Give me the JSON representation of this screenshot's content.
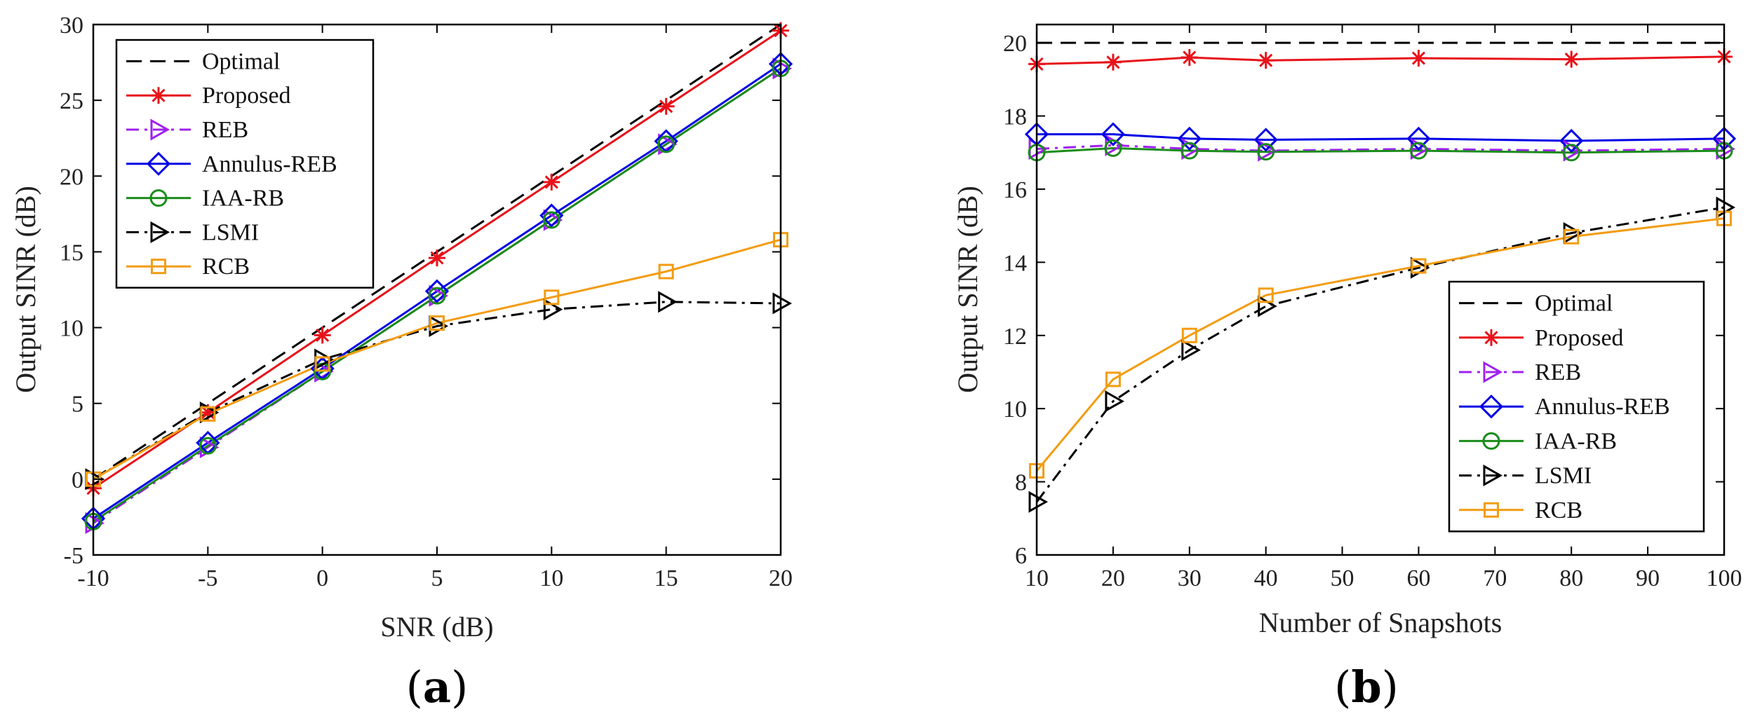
{
  "colors": {
    "Optimal": "#000000",
    "Proposed": "#e8121a",
    "REB": "#a020f0",
    "Annulus-REB": "#0000e6",
    "IAA-RB": "#1a8c1a",
    "LSMI": "#000000",
    "RCB": "#f39c12"
  },
  "chart_data": [
    {
      "type": "line",
      "panel_label": "(a)",
      "xlabel": "SNR (dB)",
      "ylabel": "Output SINR (dB)",
      "xlim": [
        -10,
        20
      ],
      "ylim": [
        -5,
        30
      ],
      "xticks": [
        -10,
        -5,
        0,
        5,
        10,
        15,
        20
      ],
      "yticks": [
        -5,
        0,
        5,
        10,
        15,
        20,
        25,
        30
      ],
      "legend_position": "top-left",
      "series": [
        {
          "name": "Optimal",
          "style": "dashed",
          "marker": "none",
          "x": [
            -10,
            20
          ],
          "y": [
            0,
            30
          ]
        },
        {
          "name": "Proposed",
          "style": "solid",
          "marker": "star",
          "x": [
            -10,
            -5,
            0,
            5,
            10,
            15,
            20
          ],
          "y": [
            -0.6,
            4.4,
            9.5,
            14.6,
            19.6,
            24.6,
            29.6
          ]
        },
        {
          "name": "REB",
          "style": "dashdot",
          "marker": "triangle-right",
          "x": [
            -10,
            -5,
            0,
            5,
            10,
            15,
            20
          ],
          "y": [
            -2.9,
            2.1,
            7.1,
            12.1,
            17.1,
            22.1,
            27.1
          ]
        },
        {
          "name": "Annulus-REB",
          "style": "solid",
          "marker": "diamond",
          "x": [
            -10,
            -5,
            0,
            5,
            10,
            15,
            20
          ],
          "y": [
            -2.6,
            2.4,
            7.3,
            12.4,
            17.4,
            22.3,
            27.4
          ]
        },
        {
          "name": "IAA-RB",
          "style": "solid",
          "marker": "circle",
          "x": [
            -10,
            -5,
            0,
            5,
            10,
            15,
            20
          ],
          "y": [
            -2.8,
            2.2,
            7.1,
            12.1,
            17.1,
            22.1,
            27.1
          ]
        },
        {
          "name": "LSMI",
          "style": "dashdot",
          "marker": "triangle-right",
          "x": [
            -10,
            -5,
            0,
            5,
            10,
            15,
            20
          ],
          "y": [
            0,
            4.4,
            7.9,
            10.1,
            11.2,
            11.7,
            11.6
          ]
        },
        {
          "name": "RCB",
          "style": "solid",
          "marker": "square",
          "x": [
            -10,
            -5,
            0,
            5,
            10,
            15,
            20
          ],
          "y": [
            0,
            4.3,
            7.6,
            10.3,
            12.0,
            13.7,
            15.8
          ]
        }
      ]
    },
    {
      "type": "line",
      "panel_label": "(b)",
      "xlabel": "Number of Snapshots",
      "ylabel": "Output SINR (dB)",
      "xlim": [
        10,
        100
      ],
      "ylim": [
        6,
        20.5
      ],
      "xticks": [
        10,
        20,
        30,
        40,
        50,
        60,
        70,
        80,
        90,
        100
      ],
      "yticks": [
        6,
        8,
        10,
        12,
        14,
        16,
        18,
        20
      ],
      "legend_position": "bottom-right",
      "series": [
        {
          "name": "Optimal",
          "style": "dashed",
          "marker": "none",
          "x": [
            10,
            100
          ],
          "y": [
            20,
            20
          ]
        },
        {
          "name": "Proposed",
          "style": "solid",
          "marker": "star",
          "x": [
            10,
            20,
            30,
            40,
            60,
            80,
            100
          ],
          "y": [
            19.42,
            19.47,
            19.6,
            19.52,
            19.58,
            19.55,
            19.62
          ]
        },
        {
          "name": "REB",
          "style": "dashdot",
          "marker": "triangle-right",
          "x": [
            10,
            20,
            30,
            40,
            60,
            80,
            100
          ],
          "y": [
            17.1,
            17.2,
            17.1,
            17.05,
            17.1,
            17.05,
            17.1
          ]
        },
        {
          "name": "Annulus-REB",
          "style": "solid",
          "marker": "diamond",
          "x": [
            10,
            20,
            30,
            40,
            60,
            80,
            100
          ],
          "y": [
            17.5,
            17.5,
            17.38,
            17.35,
            17.38,
            17.32,
            17.38
          ]
        },
        {
          "name": "IAA-RB",
          "style": "solid",
          "marker": "circle",
          "x": [
            10,
            20,
            30,
            40,
            60,
            80,
            100
          ],
          "y": [
            17.0,
            17.12,
            17.05,
            17.02,
            17.05,
            17.0,
            17.05
          ]
        },
        {
          "name": "LSMI",
          "style": "dashdot",
          "marker": "triangle-right",
          "x": [
            10,
            20,
            30,
            40,
            60,
            80,
            100
          ],
          "y": [
            7.45,
            10.2,
            11.6,
            12.8,
            13.85,
            14.8,
            15.5
          ]
        },
        {
          "name": "RCB",
          "style": "solid",
          "marker": "square",
          "x": [
            10,
            20,
            30,
            40,
            60,
            80,
            100
          ],
          "y": [
            8.3,
            10.8,
            12.0,
            13.1,
            13.9,
            14.7,
            15.2
          ]
        }
      ]
    }
  ]
}
